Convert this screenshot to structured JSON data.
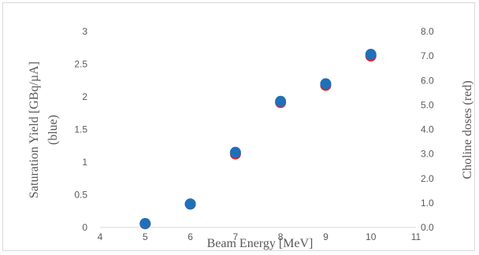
{
  "chart_data": {
    "type": "scatter",
    "xlabel": "Beam Energy [MeV]",
    "ylabel_left_line1": "Saturation Yield [GBq/µA]",
    "ylabel_left_line2": "(blue)",
    "ylabel_right": "Choline doses (red)",
    "xlim": [
      4,
      11
    ],
    "ylim_left": [
      0,
      3
    ],
    "ylim_right": [
      0,
      8
    ],
    "x_ticks": [
      "4",
      "5",
      "6",
      "7",
      "8",
      "9",
      "10",
      "11"
    ],
    "y_left_ticks": [
      "0",
      "0.5",
      "1",
      "1.5",
      "2",
      "2.5",
      "3"
    ],
    "y_right_ticks": [
      "0.0",
      "1.0",
      "2.0",
      "3.0",
      "4.0",
      "5.0",
      "6.0",
      "7.0",
      "8.0"
    ],
    "grid": false,
    "legend": "none",
    "series": [
      {
        "axis": "right",
        "color": "#d9262b",
        "x": [
          5,
          6,
          7,
          8,
          9,
          10
        ],
        "values": [
          0.15,
          0.95,
          3.0,
          5.1,
          5.8,
          7.0
        ]
      },
      {
        "axis": "left",
        "color": "#1f6fb9",
        "x": [
          5,
          6,
          7,
          8,
          9,
          10
        ],
        "values": [
          0.06,
          0.36,
          1.15,
          1.93,
          2.2,
          2.65
        ]
      }
    ]
  }
}
